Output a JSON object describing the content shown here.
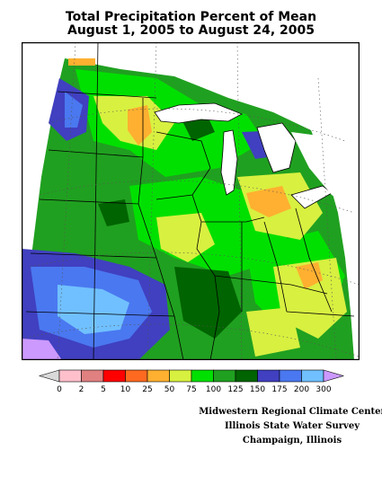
{
  "title": {
    "line1": "Total Precipitation Percent of Mean",
    "line2": "August 1, 2005 to August 24, 2005"
  },
  "legend": {
    "labels": [
      "0",
      "2",
      "5",
      "10",
      "25",
      "50",
      "75",
      "100",
      "125",
      "150",
      "175",
      "200",
      "300"
    ],
    "colors": [
      "#d9d9d9",
      "#ffc0cb",
      "#e08080",
      "#ff0000",
      "#ff6a20",
      "#ffb030",
      "#d8f040",
      "#00e000",
      "#20a020",
      "#006400",
      "#4040c0",
      "#4a78f0",
      "#70c0ff",
      "#cc99ff"
    ]
  },
  "credits": {
    "line1": "Midwestern Regional Climate Center",
    "line2": "Illinois State Water Survey",
    "line3": "Champaign, Illinois"
  },
  "map_colors": {
    "lake": "#ffffff",
    "border": "#000000"
  }
}
